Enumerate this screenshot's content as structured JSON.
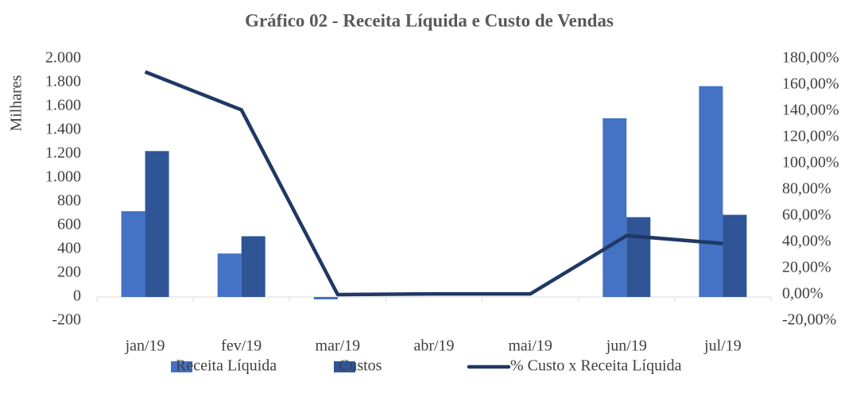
{
  "chart_data": {
    "type": "bar_line",
    "title": "Gráfico 02 - Receita Líquida e Custo de Vendas",
    "y_label": "Milhares",
    "categories": [
      "jan/19",
      "fev/19",
      "mar/19",
      "abr/19",
      "mai/19",
      "jun/19",
      "jul/19"
    ],
    "series": [
      {
        "name": "Receita Líquida",
        "type": "bar",
        "color": "#4472c4",
        "values": [
          720,
          365,
          -20,
          0,
          0,
          1500,
          1770
        ]
      },
      {
        "name": "Custos",
        "type": "bar",
        "color": "#2f5597",
        "values": [
          1225,
          510,
          0,
          0,
          0,
          670,
          690
        ]
      },
      {
        "name": "% Custo x Receita Líquida",
        "type": "line",
        "axis": "y2",
        "color": "#203864",
        "values": [
          170,
          141,
          0,
          0.5,
          0.5,
          45,
          39
        ]
      }
    ],
    "ylim": [
      -200,
      2000
    ],
    "yticks": [
      {
        "value": 2000,
        "label": "2.000"
      },
      {
        "value": 1800,
        "label": "1.800"
      },
      {
        "value": 1600,
        "label": "1.600"
      },
      {
        "value": 1400,
        "label": "1.400"
      },
      {
        "value": 1200,
        "label": "1.200"
      },
      {
        "value": 1000,
        "label": "1.000"
      },
      800,
      600,
      400,
      200,
      0,
      -200
    ],
    "y2lim": [
      -20,
      180
    ],
    "y2ticks": [
      {
        "value": 180,
        "label": "180,00%"
      },
      {
        "value": 160,
        "label": "160,00%"
      },
      {
        "value": 140,
        "label": "140,00%"
      },
      {
        "value": 120,
        "label": "120,00%"
      },
      {
        "value": 100,
        "label": "100,00%"
      },
      {
        "value": 80,
        "label": "80,00%"
      },
      {
        "value": 60,
        "label": "60,00%"
      },
      {
        "value": 40,
        "label": "40,00%"
      },
      {
        "value": 20,
        "label": "20,00%"
      },
      {
        "value": 0,
        "label": "0,00%"
      },
      {
        "value": -20,
        "label": "-20,00%"
      }
    ],
    "legend": "bottom"
  }
}
